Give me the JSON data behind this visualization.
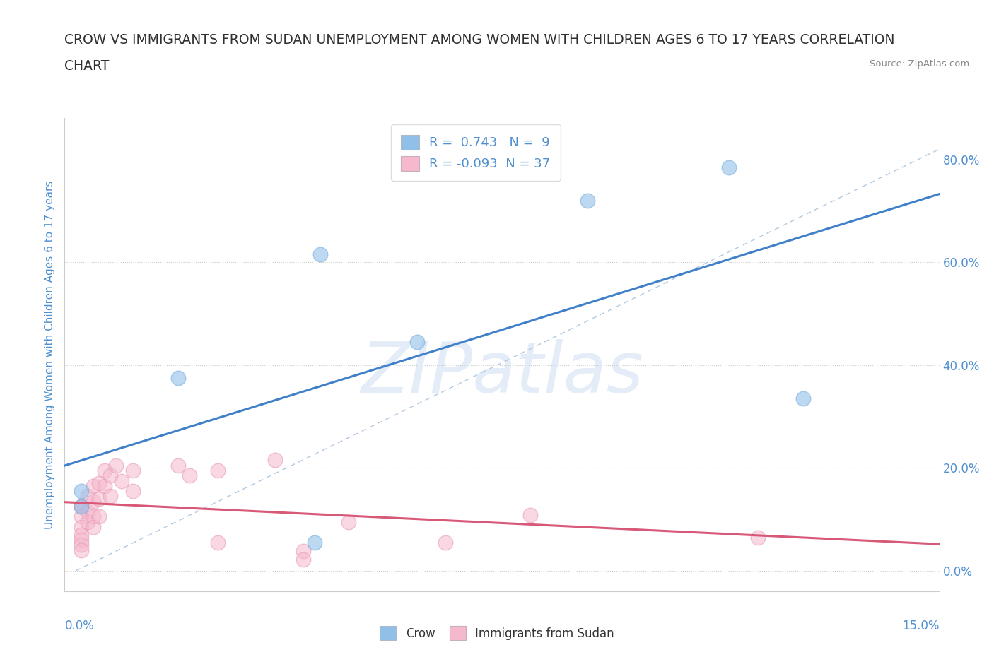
{
  "title_line1": "CROW VS IMMIGRANTS FROM SUDAN UNEMPLOYMENT AMONG WOMEN WITH CHILDREN AGES 6 TO 17 YEARS CORRELATION",
  "title_line2": "CHART",
  "source_text": "Source: ZipAtlas.com",
  "watermark": "ZIPatlas",
  "xlabel_bottom_left": "0.0%",
  "xlabel_bottom_right": "15.0%",
  "ylabel": "Unemployment Among Women with Children Ages 6 to 17 years",
  "ytick_labels": [
    "0.0%",
    "20.0%",
    "40.0%",
    "60.0%",
    "80.0%"
  ],
  "ytick_values": [
    0.0,
    0.2,
    0.4,
    0.6,
    0.8
  ],
  "xlim": [
    -0.002,
    0.152
  ],
  "ylim": [
    -0.04,
    0.88
  ],
  "crow_R": 0.743,
  "crow_N": 9,
  "sudan_R": -0.093,
  "sudan_N": 37,
  "crow_color": "#90c0e8",
  "crow_edge_color": "#7ab0e0",
  "sudan_color": "#f5b8cc",
  "sudan_edge_color": "#e898b4",
  "crow_line_color": "#4080c8",
  "sudan_line_color": "#d85878",
  "ref_line_color": "#b0c8e0",
  "legend_label_crow": "Crow",
  "legend_label_sudan": "Immigrants from Sudan",
  "crow_points": [
    [
      0.001,
      0.155
    ],
    [
      0.001,
      0.125
    ],
    [
      0.018,
      0.375
    ],
    [
      0.043,
      0.615
    ],
    [
      0.06,
      0.445
    ],
    [
      0.09,
      0.72
    ],
    [
      0.115,
      0.785
    ],
    [
      0.128,
      0.335
    ],
    [
      0.042,
      0.055
    ]
  ],
  "sudan_points": [
    [
      0.001,
      0.125
    ],
    [
      0.001,
      0.105
    ],
    [
      0.001,
      0.085
    ],
    [
      0.001,
      0.07
    ],
    [
      0.001,
      0.06
    ],
    [
      0.001,
      0.05
    ],
    [
      0.001,
      0.04
    ],
    [
      0.001,
      0.125
    ],
    [
      0.002,
      0.145
    ],
    [
      0.002,
      0.115
    ],
    [
      0.002,
      0.095
    ],
    [
      0.003,
      0.165
    ],
    [
      0.003,
      0.135
    ],
    [
      0.003,
      0.105
    ],
    [
      0.003,
      0.085
    ],
    [
      0.004,
      0.17
    ],
    [
      0.004,
      0.14
    ],
    [
      0.004,
      0.105
    ],
    [
      0.005,
      0.195
    ],
    [
      0.005,
      0.165
    ],
    [
      0.006,
      0.185
    ],
    [
      0.006,
      0.145
    ],
    [
      0.007,
      0.205
    ],
    [
      0.008,
      0.175
    ],
    [
      0.01,
      0.195
    ],
    [
      0.01,
      0.155
    ],
    [
      0.018,
      0.205
    ],
    [
      0.02,
      0.185
    ],
    [
      0.025,
      0.195
    ],
    [
      0.035,
      0.215
    ],
    [
      0.048,
      0.095
    ],
    [
      0.065,
      0.055
    ],
    [
      0.12,
      0.065
    ],
    [
      0.04,
      0.038
    ],
    [
      0.04,
      0.022
    ],
    [
      0.08,
      0.108
    ],
    [
      0.025,
      0.055
    ]
  ],
  "grid_color": "#cccccc",
  "background_color": "#ffffff",
  "title_color": "#303030",
  "tick_label_color": "#5090d0",
  "ylabel_color": "#5090d0"
}
